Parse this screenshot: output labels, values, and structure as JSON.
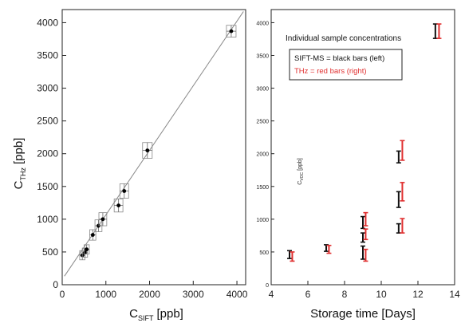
{
  "chart_data": [
    {
      "type": "scatter",
      "xlabel": "C",
      "xlabel_sub": "SIFT",
      "xlabel_unit": "[ppb]",
      "ylabel": "C",
      "ylabel_sub": "THz",
      "ylabel_unit": "[ppb]",
      "xlim": [
        0,
        4200
      ],
      "ylim": [
        0,
        4200
      ],
      "x_ticks": [
        0,
        1000,
        2000,
        3000,
        4000
      ],
      "y_ticks": [
        0,
        500,
        1000,
        1500,
        2000,
        2500,
        3000,
        3500,
        4000
      ],
      "fit_line": {
        "x": [
          50,
          4150
        ],
        "y": [
          130,
          4170
        ]
      },
      "points": [
        {
          "x": 460,
          "y": 450,
          "xerr": 60,
          "yerr": 70
        },
        {
          "x": 520,
          "y": 490,
          "xerr": 60,
          "yerr": 70
        },
        {
          "x": 560,
          "y": 540,
          "xerr": 60,
          "yerr": 70
        },
        {
          "x": 700,
          "y": 760,
          "xerr": 70,
          "yerr": 80
        },
        {
          "x": 830,
          "y": 900,
          "xerr": 80,
          "yerr": 90
        },
        {
          "x": 930,
          "y": 1000,
          "xerr": 90,
          "yerr": 100
        },
        {
          "x": 1290,
          "y": 1210,
          "xerr": 100,
          "yerr": 100
        },
        {
          "x": 1420,
          "y": 1430,
          "xerr": 100,
          "yerr": 110
        },
        {
          "x": 1950,
          "y": 2050,
          "xerr": 110,
          "yerr": 120
        },
        {
          "x": 3870,
          "y": 3870,
          "xerr": 110,
          "yerr": 90
        }
      ]
    },
    {
      "type": "scatter",
      "xlabel": "Storage time [Days]",
      "ylabel": "C",
      "ylabel_sub": "VOC",
      "ylabel_unit": "[ppb]",
      "xlim": [
        4,
        14
      ],
      "ylim": [
        0,
        4200
      ],
      "x_ticks": [
        4,
        6,
        8,
        10,
        12,
        14
      ],
      "y_ticks": [
        0,
        500,
        1000,
        1500,
        2000,
        2500,
        3000,
        3500,
        4000
      ],
      "annotation": "Individual sample concentrations",
      "legend": [
        {
          "text": "SIFT-MS = black bars (left)",
          "color": "#111111"
        },
        {
          "text": "THz = red bars (right)",
          "color": "#e03030"
        }
      ],
      "series": [
        {
          "name": "SIFT-MS",
          "color": "#111111",
          "points": [
            {
              "x": 5.0,
              "y": 460,
              "err": 60
            },
            {
              "x": 7.0,
              "y": 560,
              "err": 50
            },
            {
              "x": 9.0,
              "y": 490,
              "err": 100
            },
            {
              "x": 9.0,
              "y": 720,
              "err": 70
            },
            {
              "x": 9.0,
              "y": 950,
              "err": 90
            },
            {
              "x": 10.95,
              "y": 860,
              "err": 70
            },
            {
              "x": 10.95,
              "y": 1300,
              "err": 120
            },
            {
              "x": 10.95,
              "y": 1950,
              "err": 90
            },
            {
              "x": 12.95,
              "y": 3870,
              "err": 110
            }
          ]
        },
        {
          "name": "THz",
          "color": "#e03030",
          "points": [
            {
              "x": 5.15,
              "y": 430,
              "err": 70
            },
            {
              "x": 7.15,
              "y": 540,
              "err": 60
            },
            {
              "x": 9.15,
              "y": 450,
              "err": 90
            },
            {
              "x": 9.15,
              "y": 770,
              "err": 80
            },
            {
              "x": 9.15,
              "y": 1000,
              "err": 100
            },
            {
              "x": 11.15,
              "y": 900,
              "err": 110
            },
            {
              "x": 11.15,
              "y": 1420,
              "err": 140
            },
            {
              "x": 11.15,
              "y": 2050,
              "err": 150
            },
            {
              "x": 13.15,
              "y": 3870,
              "err": 110
            }
          ]
        }
      ]
    }
  ]
}
